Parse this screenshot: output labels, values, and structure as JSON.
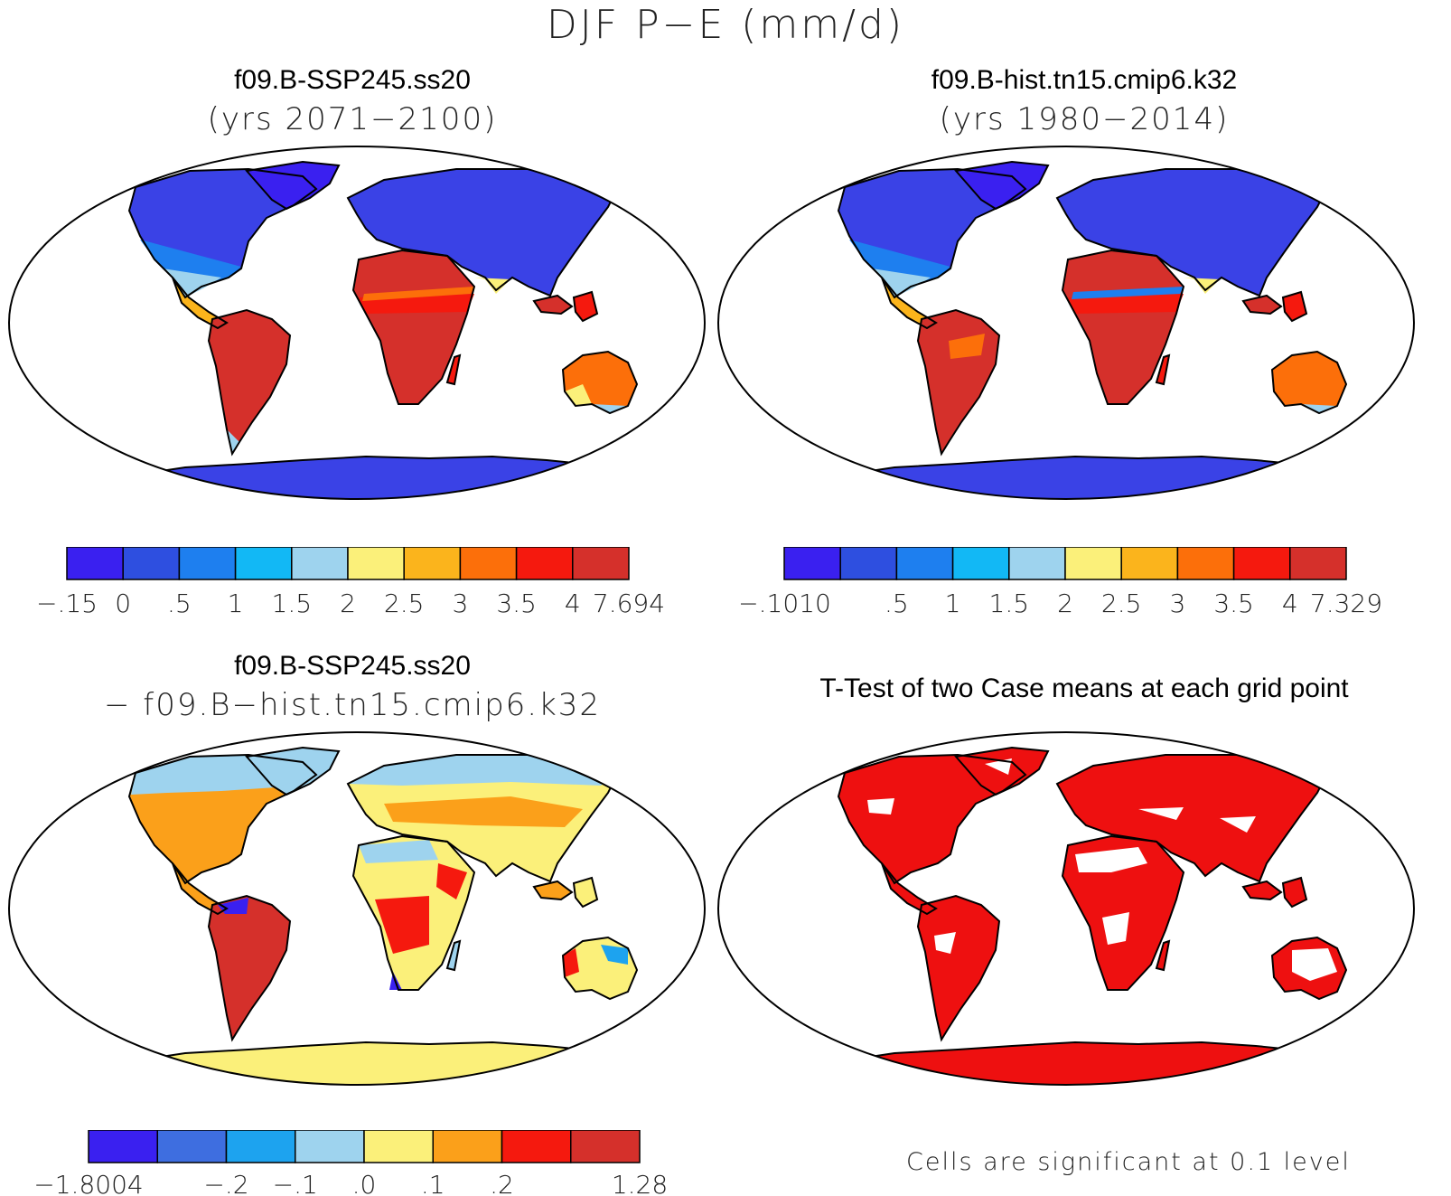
{
  "title": "DJF P−E (mm/d)",
  "panels": [
    {
      "title": "f09.B-SSP245.ss20",
      "subtitle": "(yrs 2071−2100)",
      "colorbar": {
        "colors": [
          "#3a20f0",
          "#2e4fe0",
          "#1e7fef",
          "#12b8f5",
          "#9ed3ee",
          "#fbf07a",
          "#fbb41c",
          "#fc6f0a",
          "#f5190e",
          "#d5302b"
        ],
        "labels": [
          "−.15",
          "0",
          ".5",
          "1",
          "1.5",
          "2",
          "2.5",
          "3",
          "3.5",
          "4",
          "7.694"
        ]
      }
    },
    {
      "title": "f09.B-hist.tn15.cmip6.k32",
      "subtitle": "(yrs 1980−2014)",
      "colorbar": {
        "colors": [
          "#3a20f0",
          "#2e4fe0",
          "#1e7fef",
          "#12b8f5",
          "#9ed3ee",
          "#fbf07a",
          "#fbb41c",
          "#fc6f0a",
          "#f5190e",
          "#d5302b"
        ],
        "labels": [
          "−.1010",
          "",
          ".5",
          "1",
          "1.5",
          "2",
          "2.5",
          "3",
          "3.5",
          "4",
          "7.329"
        ]
      }
    },
    {
      "title": "f09.B-SSP245.ss20",
      "subtitle": "− f09.B−hist.tn15.cmip6.k32",
      "colorbar": {
        "colors": [
          "#3a20f0",
          "#3e6ee0",
          "#1da3ef",
          "#9ed3ee",
          "#fbf07a",
          "#fba01a",
          "#f5190e",
          "#d5302b"
        ],
        "labels": [
          "−1.8004",
          "",
          "−.2",
          "−.1",
          ".0",
          ".1",
          ".2",
          "",
          "1.28"
        ]
      }
    },
    {
      "title": "T-Test of two Case means at each grid point",
      "note": "Cells are significant at 0.1 level"
    }
  ]
}
